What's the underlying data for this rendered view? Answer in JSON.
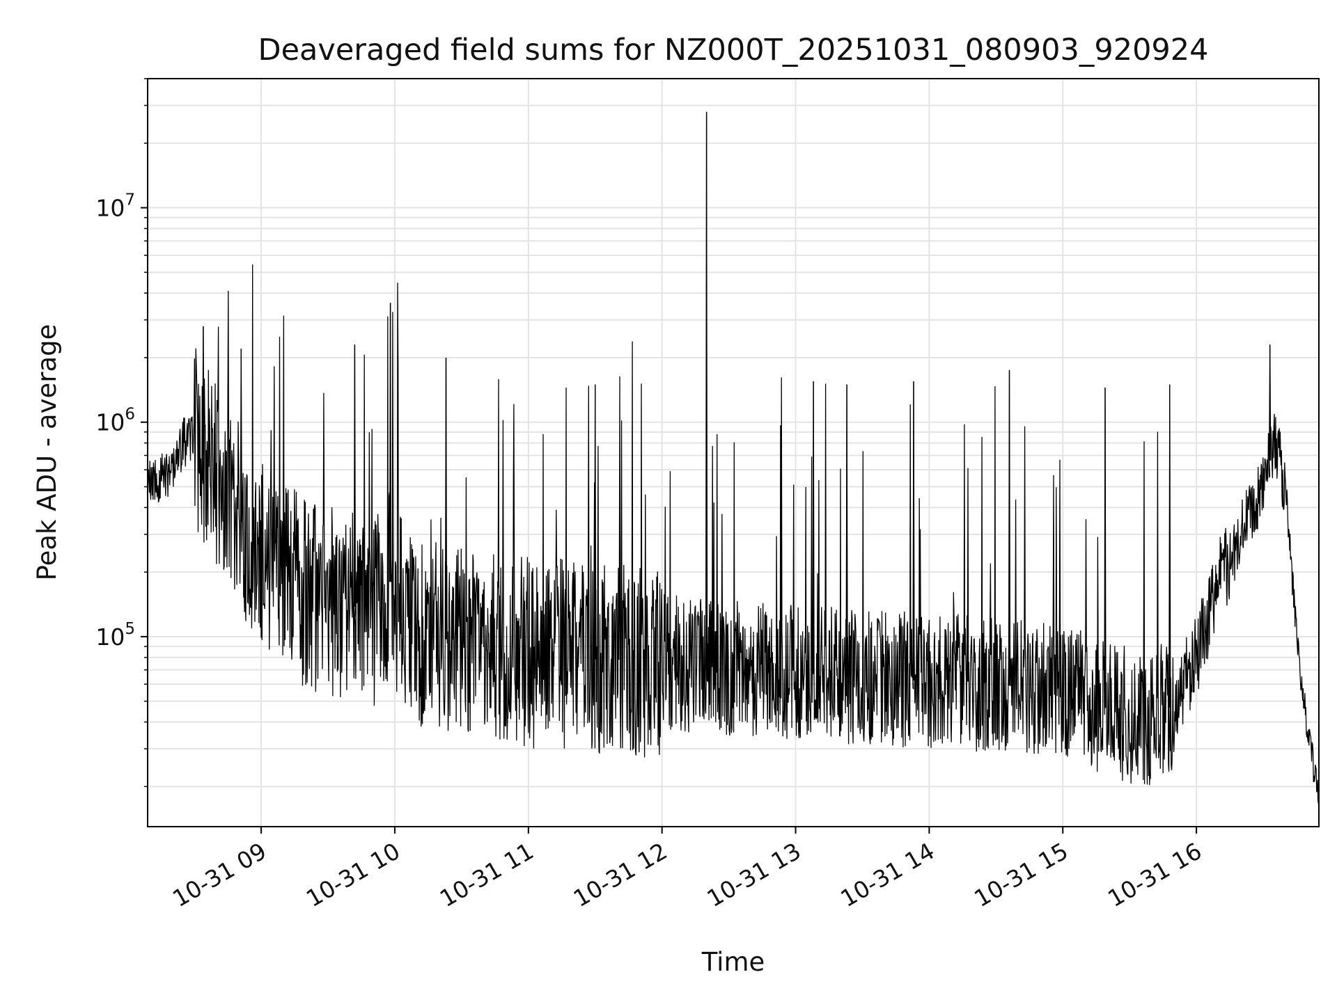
{
  "chart_data": {
    "type": "line",
    "title": "Deaveraged field sums for NZ000T_20251031_080903_920924",
    "xlabel": "Time",
    "ylabel": "Peak ADU - average",
    "yscale": "log",
    "ylim": [
      13000,
      40000000
    ],
    "xlim": [
      "2025-10-31 08:09",
      "2025-10-31 16:55"
    ],
    "grid": true,
    "series_color": "#000000",
    "x_ticks": [
      {
        "t": "2025-10-31 09:00",
        "label": "10-31 09"
      },
      {
        "t": "2025-10-31 10:00",
        "label": "10-31 10"
      },
      {
        "t": "2025-10-31 11:00",
        "label": "10-31 11"
      },
      {
        "t": "2025-10-31 12:00",
        "label": "10-31 12"
      },
      {
        "t": "2025-10-31 13:00",
        "label": "10-31 13"
      },
      {
        "t": "2025-10-31 14:00",
        "label": "10-31 14"
      },
      {
        "t": "2025-10-31 15:00",
        "label": "10-31 15"
      },
      {
        "t": "2025-10-31 16:00",
        "label": "10-31 16"
      }
    ],
    "y_ticks": [
      {
        "value": 100000,
        "base": "10",
        "exp": "5"
      },
      {
        "value": 1000000,
        "base": "10",
        "exp": "6"
      },
      {
        "value": 10000000,
        "base": "10",
        "exp": "7"
      }
    ],
    "series": [
      {
        "x": [
          "2025-10-31 08:09",
          "2025-10-31 08:15",
          "2025-10-31 08:20",
          "2025-10-31 08:25",
          "2025-10-31 08:30",
          "2025-10-31 08:34",
          "2025-10-31 08:38",
          "2025-10-31 08:42",
          "2025-10-31 08:47",
          "2025-10-31 08:52",
          "2025-10-31 09:00",
          "2025-10-31 09:10",
          "2025-10-31 09:20",
          "2025-10-31 09:30",
          "2025-10-31 09:40",
          "2025-10-31 09:50",
          "2025-10-31 09:58",
          "2025-10-31 10:05",
          "2025-10-31 10:15",
          "2025-10-31 10:30",
          "2025-10-31 10:45",
          "2025-10-31 11:00",
          "2025-10-31 11:15",
          "2025-10-31 11:30",
          "2025-10-31 11:45",
          "2025-10-31 12:00",
          "2025-10-31 12:15",
          "2025-10-31 12:30",
          "2025-10-31 12:45",
          "2025-10-31 13:00",
          "2025-10-31 13:15",
          "2025-10-31 13:30",
          "2025-10-31 13:45",
          "2025-10-31 14:00",
          "2025-10-31 14:15",
          "2025-10-31 14:30",
          "2025-10-31 14:45",
          "2025-10-31 15:00",
          "2025-10-31 15:10",
          "2025-10-31 15:20",
          "2025-10-31 15:30",
          "2025-10-31 15:40",
          "2025-10-31 15:50",
          "2025-10-31 16:00",
          "2025-10-31 16:10",
          "2025-10-31 16:20",
          "2025-10-31 16:30",
          "2025-10-31 16:35",
          "2025-10-31 16:40",
          "2025-10-31 16:45",
          "2025-10-31 16:50",
          "2025-10-31 16:55"
        ],
        "y": [
          500000,
          550000,
          600000,
          800000,
          850000,
          700000,
          600000,
          550000,
          450000,
          320000,
          250000,
          190000,
          160000,
          150000,
          140000,
          130000,
          180000,
          110000,
          100000,
          95000,
          90000,
          85000,
          82000,
          80000,
          78000,
          76000,
          74000,
          72000,
          70000,
          68000,
          66000,
          64000,
          63000,
          62000,
          61000,
          60000,
          58000,
          56000,
          52000,
          46000,
          43000,
          42000,
          48000,
          80000,
          180000,
          300000,
          500000,
          800000,
          500000,
          100000,
          35000,
          18000
        ],
        "spikes": [
          {
            "t": "2025-10-31 08:34",
            "y": 2800000
          },
          {
            "t": "2025-10-31 08:51",
            "y": 2200000
          },
          {
            "t": "2025-10-31 09:42",
            "y": 2300000
          },
          {
            "t": "2025-10-31 09:58",
            "y": 3600000
          },
          {
            "t": "2025-10-31 10:23",
            "y": 2000000
          },
          {
            "t": "2025-10-31 11:30",
            "y": 1500000
          },
          {
            "t": "2025-10-31 12:20",
            "y": 28000000
          },
          {
            "t": "2025-10-31 13:08",
            "y": 1550000
          },
          {
            "t": "2025-10-31 13:23",
            "y": 1500000
          },
          {
            "t": "2025-10-31 13:53",
            "y": 1550000
          },
          {
            "t": "2025-10-31 14:36",
            "y": 1750000
          },
          {
            "t": "2025-10-31 15:19",
            "y": 1450000
          },
          {
            "t": "2025-10-31 15:48",
            "y": 1500000
          },
          {
            "t": "2025-10-31 16:33",
            "y": 2300000
          }
        ]
      }
    ]
  }
}
